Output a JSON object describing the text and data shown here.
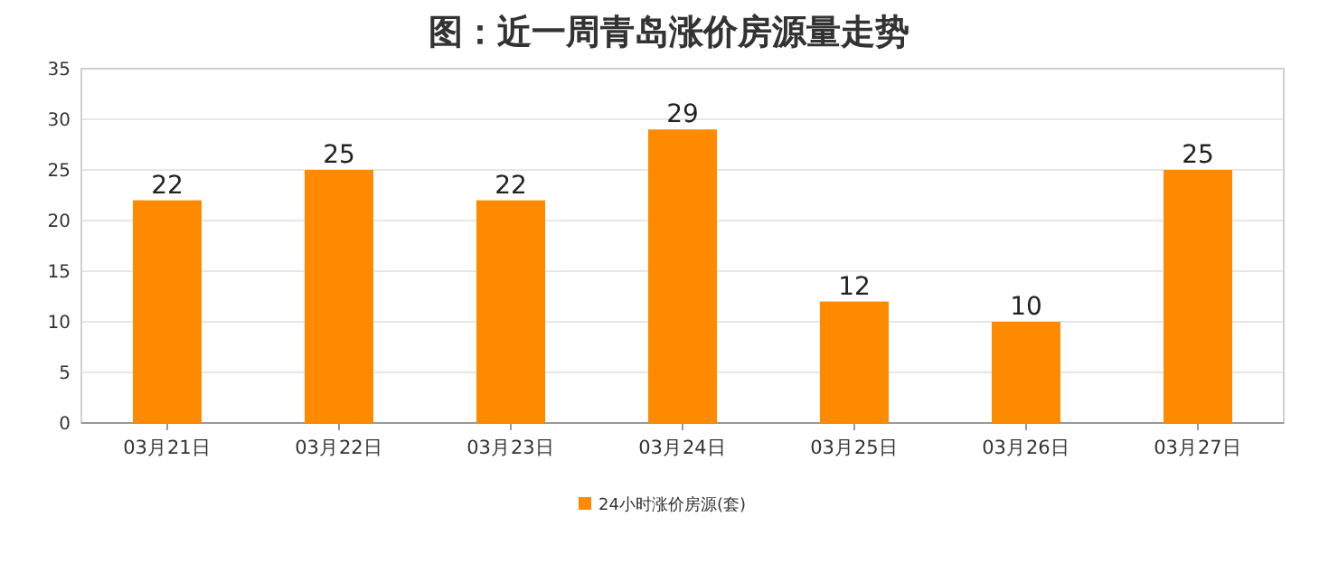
{
  "chart_data": {
    "type": "bar",
    "title": "图：近一周青岛涨价房源量走势",
    "categories": [
      "03月21日",
      "03月22日",
      "03月23日",
      "03月24日",
      "03月25日",
      "03月26日",
      "03月27日"
    ],
    "series": [
      {
        "name": "24小时涨价房源(套)",
        "color": "#ff8a00",
        "values": [
          22,
          25,
          22,
          29,
          12,
          10,
          25
        ]
      }
    ],
    "ylim": [
      0,
      35
    ],
    "yticks": [
      0,
      5,
      10,
      15,
      20,
      25,
      30,
      35
    ],
    "grid": "y",
    "legend": "bottom",
    "data_labels": true
  }
}
